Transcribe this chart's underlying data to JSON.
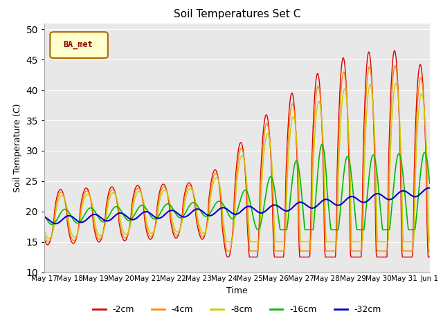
{
  "title": "Soil Temperatures Set C",
  "xlabel": "Time",
  "ylabel": "Soil Temperature (C)",
  "ylim": [
    10,
    51
  ],
  "yticks": [
    10,
    15,
    20,
    25,
    30,
    35,
    40,
    45,
    50
  ],
  "legend_label": "BA_met",
  "plot_bg_color": "#e8e8e8",
  "fig_bg_color": "#ffffff",
  "series_colors": {
    "-2cm": "#dd0000",
    "-4cm": "#ff8800",
    "-8cm": "#cccc00",
    "-16cm": "#00bb00",
    "-32cm": "#0000cc"
  },
  "xtick_labels": [
    "May 17",
    "May 18",
    "May 19",
    "May 20",
    "May 21",
    "May 22",
    "May 23",
    "May 24",
    "May 25",
    "May 26",
    "May 27",
    "May 28",
    "May 29",
    "May 30",
    "May 31",
    "Jun 1"
  ],
  "n_days": 15,
  "pts_per_day": 48
}
